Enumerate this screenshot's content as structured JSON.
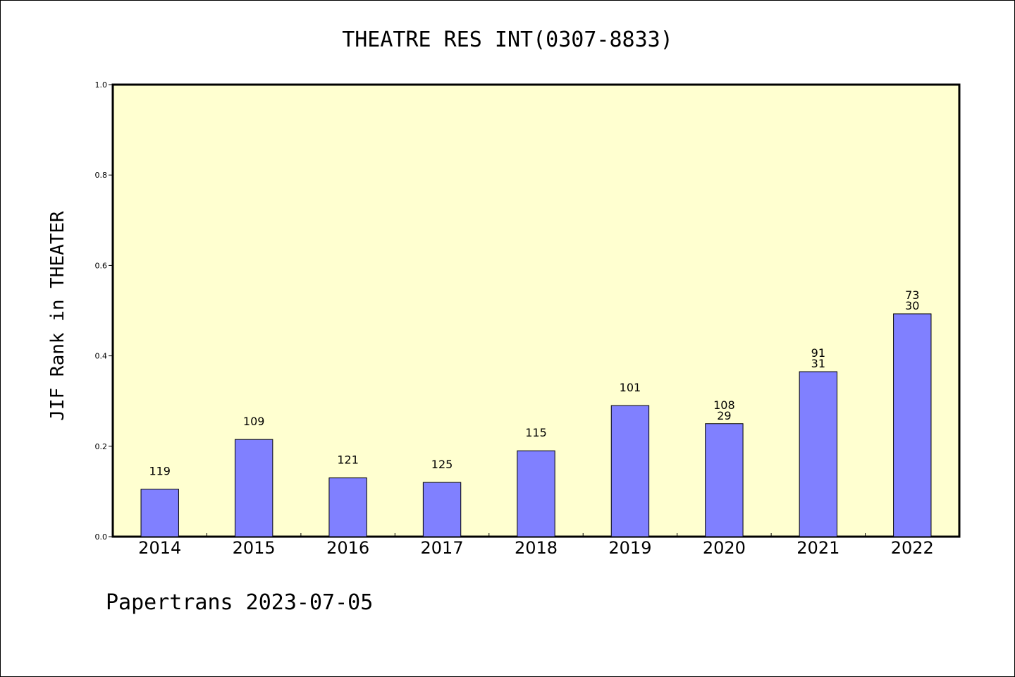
{
  "chart_data": {
    "type": "bar",
    "title": "THEATRE RES INT(0307-8833)",
    "xlabel": "",
    "ylabel": "JIF Rank in THEATER",
    "ylim": [
      0,
      1.0
    ],
    "yticks": [
      "0.0",
      "0.2",
      "0.4",
      "0.6",
      "0.8",
      "1.0"
    ],
    "categories": [
      "2014",
      "2015",
      "2016",
      "2017",
      "2018",
      "2019",
      "2020",
      "2021",
      "2022"
    ],
    "values": [
      0.105,
      0.215,
      0.13,
      0.12,
      0.19,
      0.29,
      0.25,
      0.365,
      0.493
    ],
    "labels": [
      [
        "119"
      ],
      [
        "109"
      ],
      [
        "121"
      ],
      [
        "125"
      ],
      [
        "115"
      ],
      [
        "101"
      ],
      [
        "108",
        "29"
      ],
      [
        "91",
        "31"
      ],
      [
        "73",
        "30"
      ]
    ],
    "grid": false,
    "colors": {
      "plot_background": "#ffffd0",
      "bar_fill": "#8080ff",
      "bar_stroke": "#000000"
    }
  },
  "footer": "Papertrans 2023-07-05"
}
